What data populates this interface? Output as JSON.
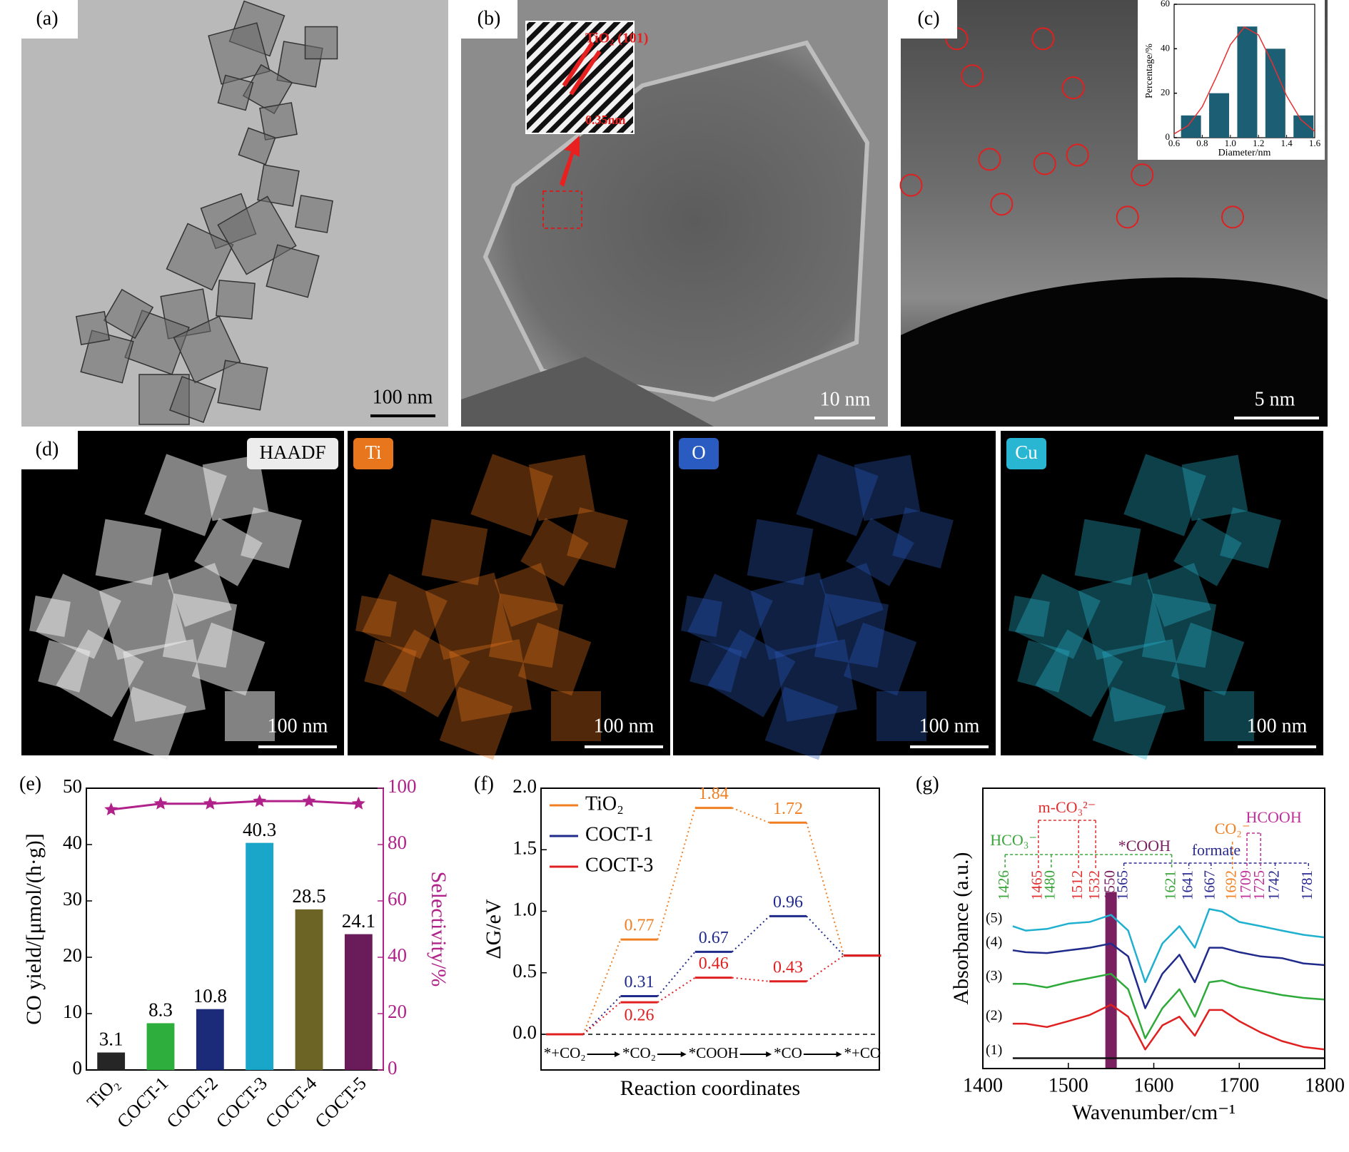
{
  "panels": {
    "a": {
      "label": "(a)",
      "scale_bar": "100 nm"
    },
    "b": {
      "label": "(b)",
      "inset_title": "TiO₂ (101)",
      "inset_spacing": "0.35nm",
      "scale_bar": "10 nm"
    },
    "c": {
      "label": "(c)",
      "scale_bar": "5 nm"
    },
    "d": {
      "label": "(d)",
      "maps": [
        {
          "label": "HAADF",
          "color": "#ececec",
          "scale_bar": "100 nm"
        },
        {
          "label": "Ti",
          "color": "#e8761c",
          "scale_bar": "100 nm"
        },
        {
          "label": "O",
          "color": "#2a5bc0",
          "scale_bar": "100 nm"
        },
        {
          "label": "Cu",
          "color": "#29b6d2",
          "scale_bar": "100 nm"
        }
      ]
    }
  },
  "chart_data": [
    {
      "type": "bar",
      "x": [
        0.72,
        0.92,
        1.12,
        1.32,
        1.52
      ],
      "values": [
        10,
        20,
        50,
        40,
        10
      ],
      "color": "#1c5e74",
      "xlim": [
        0.6,
        1.6
      ],
      "xticks": [
        0.6,
        0.8,
        {
          "value": 1,
          "label": "1.0"
        },
        1.2,
        1.4,
        1.6
      ],
      "ylim": [
        0,
        60
      ],
      "yticks": [
        0,
        20,
        40,
        60
      ],
      "xlabel": "Diameter/nm",
      "ylabel": "Percentage/%",
      "fit": {
        "color": "#e83030",
        "x": [
          0.6,
          0.7,
          0.8,
          0.9,
          1,
          1.1,
          1.2,
          1.3,
          1.4,
          1.5,
          1.6
        ],
        "values": [
          1.7,
          5.5,
          13.9,
          27.3,
          41.8,
          49.8,
          46.2,
          33.3,
          18.8,
          8.2,
          2.8
        ]
      }
    },
    {
      "type": "bar",
      "label": "(e)",
      "categories": [
        "TiO₂",
        "COCT-1",
        "COCT-2",
        "COCT-3",
        "COCT-4",
        "COCT-5"
      ],
      "values": [
        3.1,
        8.3,
        10.8,
        40.3,
        28.5,
        24.1
      ],
      "colors": [
        "#262626",
        "#2eae3c",
        "#1c2a7a",
        "#1aa6c8",
        "#6b6424",
        "#6a1c5a"
      ],
      "ylim": [
        0,
        50
      ],
      "yticks": [
        0,
        10,
        20,
        30,
        40,
        50
      ],
      "ylabel": "CO yield/[μmol/(h·g)]",
      "y2lim": [
        0,
        100
      ],
      "y2ticks": [
        0,
        20,
        40,
        60,
        80,
        100
      ],
      "y2label": "Selectivity/%",
      "y2color": "#b0228a",
      "series": [
        {
          "axis": "y2",
          "marker": "star",
          "color": "#b0228a",
          "values": [
            92.4,
            94.5,
            94.5,
            95.4,
            95.4,
            94.5
          ]
        }
      ]
    },
    {
      "type": "energy_profile",
      "label": "(f)",
      "categories": [
        "*+CO₂",
        "*CO₂",
        "*COOH",
        "*CO",
        "*+CO"
      ],
      "series": [
        {
          "name": "TiO₂",
          "color": "#f07f22",
          "values": [
            0,
            0.77,
            1.84,
            1.72,
            0.64
          ]
        },
        {
          "name": "COCT-1",
          "color": "#1f2a8a",
          "values": [
            0,
            0.31,
            0.67,
            0.96,
            0.64
          ]
        },
        {
          "name": "COCT-3",
          "color": "#e02020",
          "values": [
            0,
            0.26,
            0.46,
            0.43,
            0.64
          ]
        }
      ],
      "ylim": [
        -0.29,
        2
      ],
      "yticks": [
        {
          "value": 0,
          "label": "0.0"
        },
        0.5,
        {
          "value": 1,
          "label": "1.0"
        },
        1.5,
        {
          "value": 2,
          "label": "2.0"
        }
      ],
      "ylabel": "ΔG/eV",
      "xlabel": "Reaction coordinates"
    },
    {
      "type": "line",
      "label": "(g)",
      "x": [
        1435,
        1450,
        1475,
        1500,
        1525,
        1550,
        1570,
        1590,
        1610,
        1630,
        1648,
        1665,
        1680,
        1700,
        1725,
        1750,
        1775,
        1800
      ],
      "series": [
        {
          "name": "(1)",
          "color": "#111111",
          "values": [
            3.7,
            3.7,
            3.7,
            3.7,
            3.7,
            3.7,
            3.7,
            3.7,
            3.7,
            3.7,
            3.7,
            3.7,
            3.7,
            3.7,
            3.7,
            3.7,
            3.7,
            3.7
          ]
        },
        {
          "name": "(2)",
          "color": "#e02020",
          "values": [
            16.0,
            16.0,
            14.8,
            16.9,
            19.1,
            22.8,
            18.5,
            6.8,
            15.4,
            18.5,
            11.7,
            20.9,
            20.9,
            16.9,
            12.9,
            9.8,
            7.7,
            6.8
          ]
        },
        {
          "name": "(3)",
          "color": "#2eaa3a",
          "values": [
            30.2,
            30.2,
            28.9,
            30.8,
            32.3,
            33.8,
            28.3,
            10.8,
            21.5,
            28.3,
            18.5,
            30.8,
            31.4,
            29.2,
            27.7,
            26.2,
            25.2,
            24.6
          ]
        },
        {
          "name": "(4)",
          "color": "#1f2a8a",
          "values": [
            42.2,
            41.5,
            41.2,
            42.2,
            43.1,
            44.6,
            40.0,
            21.5,
            33.8,
            40.6,
            30.8,
            43.1,
            43.1,
            41.5,
            40.0,
            39.4,
            37.5,
            36.9
          ]
        },
        {
          "name": "(5)",
          "color": "#1fb0d0",
          "values": [
            50.8,
            49.2,
            49.8,
            51.7,
            52.3,
            54.8,
            49.2,
            30.8,
            44.6,
            50.8,
            43.1,
            56.9,
            56.0,
            52.3,
            50.8,
            49.2,
            47.7,
            46.8
          ]
        }
      ],
      "xlim": [
        1400,
        1800
      ],
      "xticks": [
        1400,
        1500,
        1600,
        1700,
        1800
      ],
      "ylim": [
        0,
        100
      ],
      "xlabel": "Wavenumber/cm⁻¹",
      "ylabel": "Absorbance (a.u.)",
      "peak_groups": [
        {
          "label": "HCO₃⁻",
          "color": "#3aa53a",
          "peaks": [
            1426,
            1480,
            1621
          ]
        },
        {
          "label": "m-CO₃²⁻",
          "color": "#e03030",
          "peaks": [
            1465,
            1512,
            1532
          ]
        },
        {
          "label": "*COOH",
          "color": "#7a2060",
          "peaks": [
            1550
          ]
        },
        {
          "label": "formate",
          "color": "#2a2a90",
          "peaks": [
            1565,
            1641,
            1667,
            1742,
            1781
          ]
        },
        {
          "label": "CO₂⁻",
          "color": "#f08020",
          "peaks": [
            1692
          ]
        },
        {
          "label": "HCOOH",
          "color": "#c0309a",
          "peaks": [
            1709,
            1725
          ]
        }
      ]
    }
  ]
}
